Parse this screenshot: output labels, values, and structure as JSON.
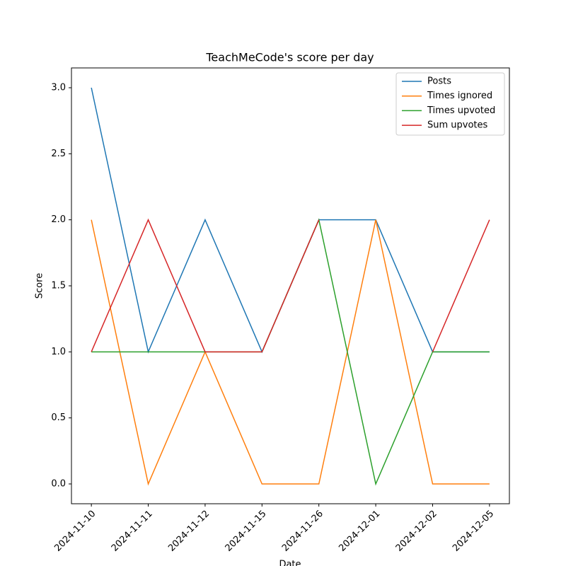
{
  "chart_data": {
    "type": "line",
    "title": "TeachMeCode's score per day",
    "x_label": "Date",
    "y_label": "Score",
    "categories": [
      "2024-11-10",
      "2024-11-11",
      "2024-11-12",
      "2024-11-15",
      "2024-11-26",
      "2024-12-01",
      "2024-12-02",
      "2024-12-05"
    ],
    "series": [
      {
        "name": "Posts",
        "color": "#1f77b4",
        "values": [
          3,
          1,
          2,
          1,
          2,
          2,
          1,
          1
        ]
      },
      {
        "name": "Times ignored",
        "color": "#ff7f0e",
        "values": [
          2,
          0,
          1,
          0,
          0,
          2,
          0,
          0
        ]
      },
      {
        "name": "Times upvoted",
        "color": "#2ca02c",
        "values": [
          1,
          1,
          1,
          1,
          2,
          0,
          1,
          1
        ]
      },
      {
        "name": "Sum upvotes",
        "color": "#d62728",
        "values": [
          1,
          2,
          1,
          1,
          2,
          null,
          1,
          2
        ]
      }
    ],
    "ylim": [
      -0.15,
      3.15
    ],
    "yticks": [
      {
        "value": 0,
        "label": "0.0"
      },
      0.5,
      {
        "value": 1,
        "label": "1.0"
      },
      1.5,
      {
        "value": 2,
        "label": "2.0"
      },
      2.5,
      {
        "value": 3,
        "label": "3.0"
      }
    ],
    "grid": false,
    "legend": "upper right"
  }
}
